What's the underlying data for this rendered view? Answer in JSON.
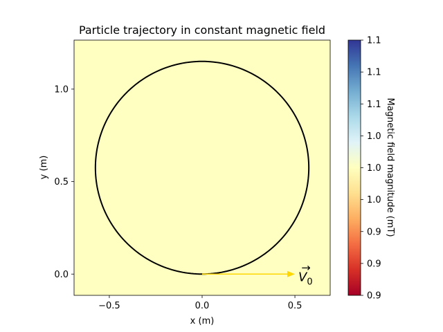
{
  "chart_data": {
    "type": "line",
    "title": "Particle trajectory in constant magnetic field",
    "xlabel": "x (m)",
    "ylabel": "y (m)",
    "xlim": [
      -0.69,
      0.69
    ],
    "ylim": [
      -0.115,
      1.265
    ],
    "x_ticks": [
      -0.5,
      0.0,
      0.5
    ],
    "x_tick_labels": [
      "−0.5",
      "0.0",
      "0.5"
    ],
    "y_ticks": [
      0.0,
      0.5,
      1.0
    ],
    "y_tick_labels": [
      "0.0",
      "0.5",
      "1.0"
    ],
    "grid": false,
    "background_field": {
      "value": 1.0,
      "color": "#feffc0"
    },
    "trajectory": {
      "shape": "circle",
      "center": [
        0.0,
        0.575
      ],
      "radius": 0.575,
      "color": "#000000"
    },
    "velocity_arrow": {
      "start": [
        0.0,
        0.0
      ],
      "end": [
        0.5,
        0.0
      ],
      "color": "#ffd700",
      "label": "V",
      "label_subscript": "0",
      "label_accent": "→"
    },
    "colorbar": {
      "label": "Magnetic field magnitude (mT)",
      "cmap": "RdYlBu",
      "range": [
        0.9,
        1.1
      ],
      "ticks": [
        0.9,
        0.925,
        0.95,
        0.975,
        1.0,
        1.025,
        1.05,
        1.075,
        1.1
      ],
      "tick_labels": [
        "0.9",
        "0.9",
        "0.9",
        "1.0",
        "1.0",
        "1.0",
        "1.1",
        "1.1",
        "1.1"
      ]
    }
  }
}
